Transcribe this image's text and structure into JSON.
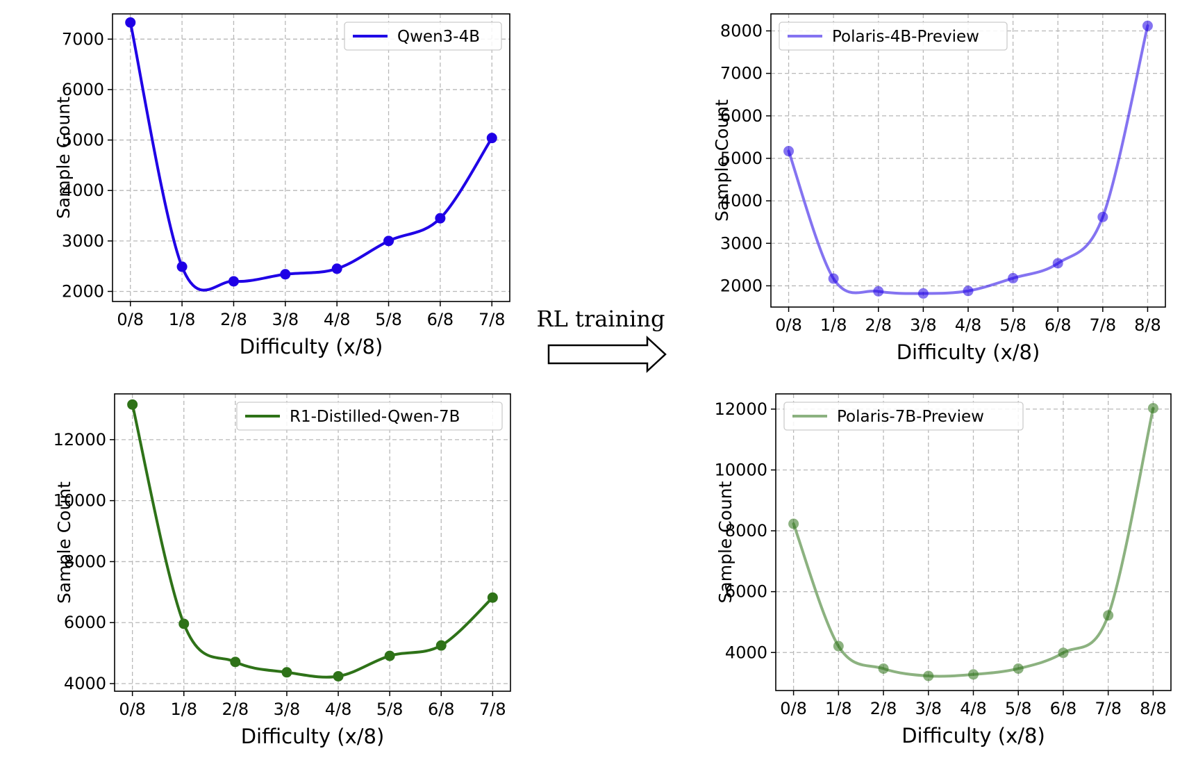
{
  "arrow": {
    "label": "RL training"
  },
  "chart_data": [
    {
      "type": "line",
      "xlabel": "Difficulty (x/8)",
      "ylabel": "Sample Count",
      "x": [
        "0/8",
        "1/8",
        "2/8",
        "3/8",
        "4/8",
        "5/8",
        "6/8",
        "7/8"
      ],
      "yticks": [
        2000,
        3000,
        4000,
        5000,
        6000,
        7000
      ],
      "ylim": [
        1800,
        7500
      ],
      "grid": true,
      "legend_position": "top-right",
      "series": [
        {
          "name": "Qwen3-4B",
          "color": "#1f00e6",
          "opacity": 1.0,
          "values": [
            7330,
            2490,
            2200,
            2340,
            2450,
            3000,
            3450,
            5040
          ]
        }
      ]
    },
    {
      "type": "line",
      "xlabel": "Difficulty (x/8)",
      "ylabel": "Sample Count",
      "x": [
        "0/8",
        "1/8",
        "2/8",
        "3/8",
        "4/8",
        "5/8",
        "6/8",
        "7/8",
        "8/8"
      ],
      "yticks": [
        2000,
        3000,
        4000,
        5000,
        6000,
        7000,
        8000
      ],
      "ylim": [
        1500,
        8400
      ],
      "grid": true,
      "legend_position": "top-left",
      "series": [
        {
          "name": "Polaris-4B-Preview",
          "color": "#1f00e6",
          "opacity": 0.55,
          "values": [
            5170,
            2170,
            1870,
            1820,
            1880,
            2180,
            2530,
            3620,
            8120
          ]
        }
      ]
    },
    {
      "type": "line",
      "xlabel": "Difficulty (x/8)",
      "ylabel": "Sample Count",
      "x": [
        "0/8",
        "1/8",
        "2/8",
        "3/8",
        "4/8",
        "5/8",
        "6/8",
        "7/8"
      ],
      "yticks": [
        4000,
        6000,
        8000,
        10000,
        12000
      ],
      "ylim": [
        3750,
        13500
      ],
      "grid": true,
      "legend_position": "top-right",
      "series": [
        {
          "name": "R1-Distilled-Qwen-7B",
          "color": "#2e7218",
          "opacity": 1.0,
          "values": [
            13150,
            5960,
            4710,
            4370,
            4240,
            4910,
            5250,
            6820
          ]
        }
      ]
    },
    {
      "type": "line",
      "xlabel": "Difficulty (x/8)",
      "ylabel": "Sample Count",
      "x": [
        "0/8",
        "1/8",
        "2/8",
        "3/8",
        "4/8",
        "5/8",
        "6/8",
        "7/8",
        "8/8"
      ],
      "yticks": [
        4000,
        6000,
        8000,
        10000,
        12000
      ],
      "ylim": [
        2750,
        12500
      ],
      "grid": true,
      "legend_position": "top-left",
      "series": [
        {
          "name": "Polaris-7B-Preview",
          "color": "#2e7218",
          "opacity": 0.55,
          "values": [
            8230,
            4210,
            3470,
            3230,
            3280,
            3470,
            3990,
            5220,
            12030
          ]
        }
      ]
    }
  ]
}
